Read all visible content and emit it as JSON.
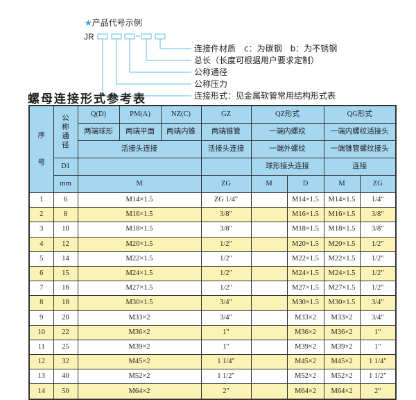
{
  "example": {
    "star_icon": "star-icon",
    "title": "产品代号示例",
    "code_prefix": "JR",
    "legend": [
      "连接件材质　c：为碳钢　b：为不锈钢",
      "总长（长度可根据用户要求定制）",
      "公称通径",
      "公称压力",
      "连接形式：见金属软管常用结构形式表"
    ]
  },
  "table_title": "螺母连接形式参考表",
  "colors": {
    "header": "#a6d7f1",
    "row_alt": "#fbf3b5",
    "accent": "#2aa0d8"
  },
  "header": {
    "seq": "序号",
    "dn": "公称通径",
    "d1": "D1",
    "mm": "mm",
    "codes": [
      "Q(D)",
      "PM(A)",
      "NZ(C)",
      "GZ",
      "QZ形式",
      "QG形式"
    ],
    "types": [
      "两端球形",
      "两端平面",
      "两端内锥",
      "两端锥管",
      "一端内螺纹",
      "一端内螺纹活接头"
    ],
    "conn_row": [
      "活接头连接",
      "活接头连接",
      "一端外螺纹",
      "一端锥管螺纹接头"
    ],
    "d1_row": [
      "",
      "",
      "球形接头连接",
      "连接"
    ],
    "units": [
      "M",
      "ZG",
      "M",
      "D",
      "M",
      "ZG"
    ]
  },
  "rows": [
    {
      "no": "1",
      "dn": "6",
      "m": "M14×1.5",
      "zg": "ZG 1/4\"",
      "qz_m": "",
      "qz_d": "M14×1.5",
      "qg_m": "M14×1.5",
      "qg_zg": "1/4\""
    },
    {
      "no": "2",
      "dn": "8",
      "m": "M16×1.5",
      "zg": "3/8\"",
      "qz_m": "",
      "qz_d": "M16×1.5",
      "qg_m": "M16×1.5",
      "qg_zg": "3/8\""
    },
    {
      "no": "3",
      "dn": "10",
      "m": "M18×1.5",
      "zg": "3/8\"",
      "qz_m": "",
      "qz_d": "M18×1.5",
      "qg_m": "M18×1.5",
      "qg_zg": "3/8\""
    },
    {
      "no": "4",
      "dn": "12",
      "m": "M20×1.5",
      "zg": "1/2\"",
      "qz_m": "",
      "qz_d": "M20×1.5",
      "qg_m": "M20×1.5",
      "qg_zg": "1/2\""
    },
    {
      "no": "5",
      "dn": "14",
      "m": "M22×1.5",
      "zg": "1/2\"",
      "qz_m": "",
      "qz_d": "M22×1.5",
      "qg_m": "M22×1.5",
      "qg_zg": "1/2\""
    },
    {
      "no": "6",
      "dn": "15",
      "m": "M24×1.5",
      "zg": "1/2\"",
      "qz_m": "",
      "qz_d": "M24×1.5",
      "qg_m": "M24×1.5",
      "qg_zg": "1/2\""
    },
    {
      "no": "7",
      "dn": "16",
      "m": "M27×1.5",
      "zg": "1/2\"",
      "qz_m": "",
      "qz_d": "M27×1.5",
      "qg_m": "M27×1.5",
      "qg_zg": "1/2\""
    },
    {
      "no": "8",
      "dn": "18",
      "m": "M30×1.5",
      "zg": "3/4\"",
      "qz_m": "",
      "qz_d": "M30×1.5",
      "qg_m": "M30×1.5",
      "qg_zg": "3/4\""
    },
    {
      "no": "9",
      "dn": "20",
      "m": "M33×2",
      "zg": "3/4\"",
      "qz_m": "",
      "qz_d": "M33×2",
      "qg_m": "M33×2",
      "qg_zg": "3/4\""
    },
    {
      "no": "10",
      "dn": "22",
      "m": "M36×2",
      "zg": "1\"",
      "qz_m": "",
      "qz_d": "M36×2",
      "qg_m": "M36×2",
      "qg_zg": "1\""
    },
    {
      "no": "11",
      "dn": "25",
      "m": "M39×2",
      "zg": "1\"",
      "qz_m": "",
      "qz_d": "M39×2",
      "qg_m": "M39×2",
      "qg_zg": "1\""
    },
    {
      "no": "12",
      "dn": "32",
      "m": "M45×2",
      "zg": "1 1/4\"",
      "qz_m": "",
      "qz_d": "M45×2",
      "qg_m": "M45×2",
      "qg_zg": "1 1/4\""
    },
    {
      "no": "13",
      "dn": "40",
      "m": "M52×2",
      "zg": "1 1/2\"",
      "qz_m": "",
      "qz_d": "M52×2",
      "qg_m": "M52×2",
      "qg_zg": "1 1/2\""
    },
    {
      "no": "14",
      "dn": "50",
      "m": "M64×2",
      "zg": "2\"",
      "qz_m": "",
      "qz_d": "M64×2",
      "qg_m": "M64×2",
      "qg_zg": "2\""
    }
  ]
}
